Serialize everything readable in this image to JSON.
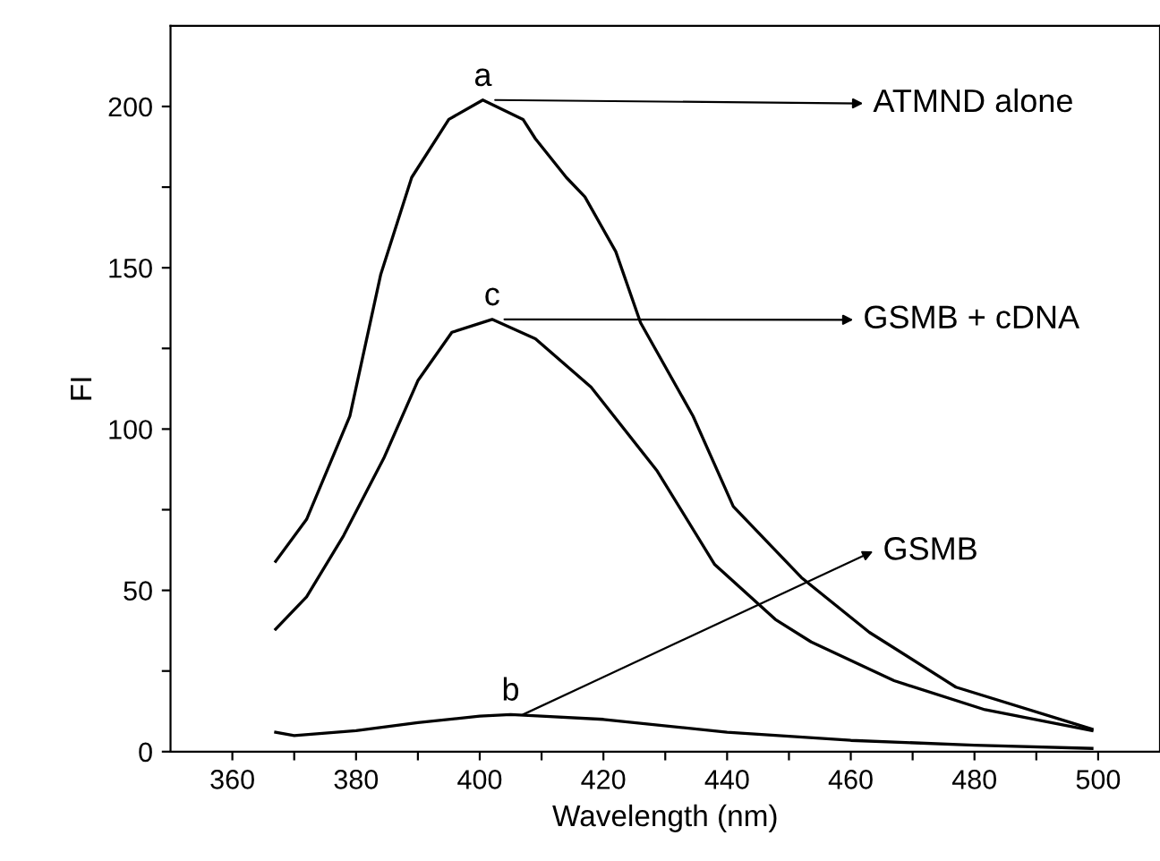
{
  "chart_data": {
    "type": "line",
    "xlabel": "Wavelength (nm)",
    "ylabel": "FI",
    "xlim": [
      350,
      510
    ],
    "ylim": [
      0,
      225
    ],
    "xticks": [
      360,
      {
        "value": 370,
        "label": null
      },
      380,
      {
        "value": 390,
        "label": null
      },
      400,
      {
        "value": 410,
        "label": null
      },
      420,
      {
        "value": 430,
        "label": null
      },
      440,
      {
        "value": 450,
        "label": null
      },
      460,
      {
        "value": 470,
        "label": null
      },
      480,
      {
        "value": 490,
        "label": null
      },
      500
    ],
    "yticks": [
      0,
      {
        "value": 25,
        "label": null
      },
      50,
      {
        "value": 75,
        "label": null
      },
      100,
      {
        "value": 125,
        "label": null
      },
      150,
      {
        "value": 175,
        "label": null
      },
      200
    ],
    "grid": false,
    "legend": false,
    "marker": "none",
    "line_style": "solid",
    "series": [
      {
        "name": "a",
        "color": "#000000",
        "x": [
          367,
          372,
          379,
          384,
          389,
          395,
          400.5,
          407,
          409,
          414,
          417,
          422,
          426,
          434.5,
          441,
          452,
          463,
          477,
          499
        ],
        "values": [
          59,
          72,
          104,
          148,
          178,
          196,
          202,
          196,
          190,
          178,
          172,
          155,
          133,
          104,
          76,
          54,
          37,
          20,
          7
        ]
      },
      {
        "name": "c",
        "color": "#000000",
        "x": [
          367,
          372,
          378,
          384.5,
          390,
          395.5,
          402,
          409,
          418,
          428.7,
          438,
          447.8,
          453.6,
          467,
          481.7,
          499
        ],
        "values": [
          38,
          48,
          67,
          91,
          115,
          130,
          134,
          128,
          113,
          87,
          58,
          41,
          34,
          22,
          13,
          6.5
        ]
      },
      {
        "name": "b",
        "color": "#000000",
        "x": [
          367,
          370,
          380,
          390,
          400,
          405,
          410,
          420,
          440,
          460,
          480,
          499
        ],
        "values": [
          6,
          5,
          6.5,
          9,
          11,
          11.5,
          11,
          10,
          6,
          3.5,
          2,
          1
        ]
      }
    ],
    "annotations": [
      "ATMND alone",
      "GSMB + cDNA",
      "GSMB"
    ]
  }
}
